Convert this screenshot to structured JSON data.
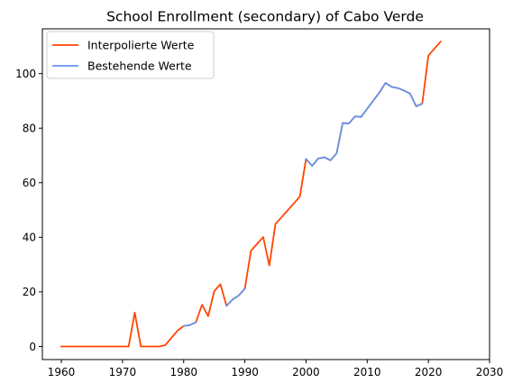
{
  "chart_data": {
    "type": "line",
    "title": "School Enrollment (secondary) of Cabo Verde",
    "xlabel": "",
    "ylabel": "",
    "xlim": [
      1956.9,
      2030
    ],
    "ylim": [
      -4.8,
      116.4
    ],
    "xticks": [
      1960,
      1970,
      1980,
      1990,
      2000,
      2010,
      2020,
      2030
    ],
    "yticks": [
      0,
      20,
      40,
      60,
      80,
      100
    ],
    "grid": false,
    "legend_position": "upper left",
    "series": [
      {
        "name": "Interpolierte Werte",
        "color": "#ff4500",
        "x": [
          1960,
          1961,
          1962,
          1963,
          1964,
          1965,
          1966,
          1967,
          1968,
          1969,
          1970,
          1971,
          1972,
          1973,
          1974,
          1975,
          1976,
          1977,
          1978,
          1979,
          1980,
          1981,
          1982,
          1983,
          1984,
          1985,
          1986,
          1987,
          1988,
          1989,
          1990,
          1991,
          1992,
          1993,
          1994,
          1995,
          1996,
          1997,
          1998,
          1999,
          2000,
          2001,
          2002,
          2003,
          2004,
          2005,
          2006,
          2007,
          2008,
          2009,
          2010,
          2011,
          2012,
          2013,
          2014,
          2015,
          2016,
          2017,
          2018,
          2019,
          2020,
          2021,
          2022
        ],
        "values": [
          0,
          0,
          0,
          0,
          0,
          0,
          0,
          0,
          0,
          0,
          0,
          0,
          12.4,
          0,
          0,
          0,
          0,
          0.5,
          3.2,
          5.8,
          7.5,
          7.8,
          8.9,
          15.3,
          11.1,
          20.3,
          22.8,
          14.9,
          17.2,
          18.7,
          21.2,
          35.1,
          37.6,
          40.1,
          29.7,
          44.9,
          47.4,
          49.9,
          52.4,
          55.0,
          68.7,
          66.2,
          68.9,
          69.3,
          68.2,
          70.8,
          81.9,
          81.7,
          84.3,
          84.1,
          87.1,
          90.1,
          93.1,
          96.6,
          95.1,
          94.7,
          93.8,
          92.7,
          88.0,
          89.0,
          106.6,
          109.2,
          111.7
        ]
      },
      {
        "name": "Bestehende Werte",
        "color": "#6495ed",
        "x": [
          1980,
          1981,
          1982,
          null,
          1987,
          1988,
          1989,
          1990,
          null,
          2000,
          2001,
          2002,
          2003,
          2004,
          2005,
          2006,
          2007,
          2008,
          2009,
          2010,
          2011,
          2012,
          2013,
          2014,
          2015,
          2016,
          2017,
          2018,
          2019
        ],
        "values": [
          7.5,
          7.8,
          8.9,
          null,
          14.9,
          17.2,
          18.7,
          21.2,
          null,
          68.7,
          66.2,
          68.9,
          69.3,
          68.2,
          70.8,
          81.9,
          81.7,
          84.3,
          84.1,
          87.1,
          90.1,
          93.1,
          96.6,
          95.1,
          94.7,
          93.8,
          92.7,
          88.0,
          89.0
        ]
      }
    ]
  }
}
